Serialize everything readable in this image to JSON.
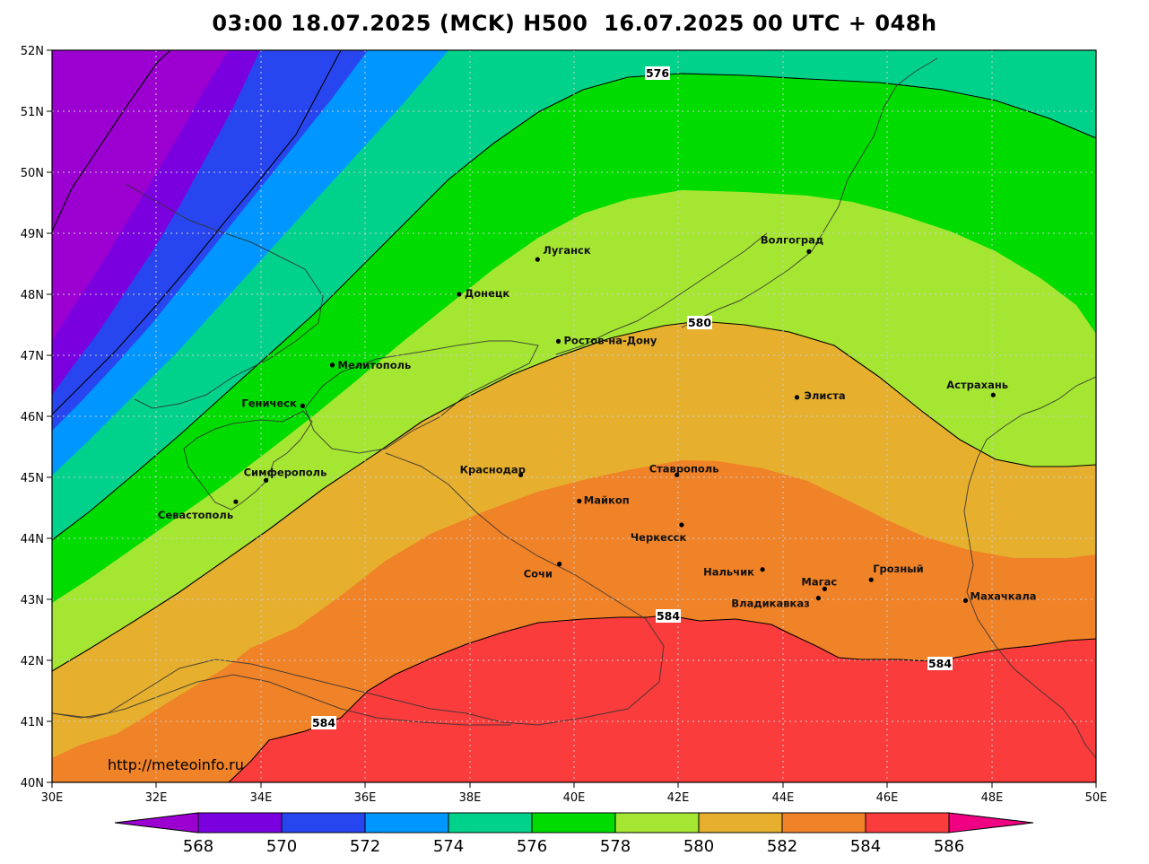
{
  "header": {
    "title": "03:00 18.07.2025 (MCK) H500  16.07.2025 00 UTC + 048h"
  },
  "map": {
    "lat_labels": [
      "52N",
      "51N",
      "50N",
      "49N",
      "48N",
      "47N",
      "46N",
      "45N",
      "44N",
      "43N",
      "42N",
      "41N",
      "40N"
    ],
    "lon_labels": [
      "30E",
      "32E",
      "34E",
      "36E",
      "38E",
      "40E",
      "42E",
      "44E",
      "46E",
      "48E",
      "50E"
    ],
    "url": "http://meteoinfo.ru",
    "contour_labels": [
      {
        "id": "c576",
        "text": "576"
      },
      {
        "id": "c580",
        "text": "580"
      },
      {
        "id": "c584a",
        "text": "584"
      },
      {
        "id": "c584b",
        "text": "584"
      },
      {
        "id": "c584c",
        "text": "584"
      }
    ],
    "cities": [
      {
        "name": "Луганск",
        "lon": 39.3,
        "lat": 48.57
      },
      {
        "name": "Волгоград",
        "lon": 44.5,
        "lat": 48.7
      },
      {
        "name": "Донецк",
        "lon": 37.8,
        "lat": 48.0
      },
      {
        "name": "Ростов-на-Дону",
        "lon": 39.7,
        "lat": 47.23
      },
      {
        "name": "Мелитополь",
        "lon": 35.37,
        "lat": 46.84
      },
      {
        "name": "Геническ",
        "lon": 34.8,
        "lat": 46.17
      },
      {
        "name": "Элиста",
        "lon": 44.27,
        "lat": 46.31
      },
      {
        "name": "Астрахань",
        "lon": 48.03,
        "lat": 46.35
      },
      {
        "name": "Симферополь",
        "lon": 34.1,
        "lat": 44.95
      },
      {
        "name": "Севастополь",
        "lon": 33.52,
        "lat": 44.6
      },
      {
        "name": "Краснодар",
        "lon": 38.98,
        "lat": 45.04
      },
      {
        "name": "Ставрополь",
        "lon": 41.97,
        "lat": 45.04
      },
      {
        "name": "Майкоп",
        "lon": 40.1,
        "lat": 44.61
      },
      {
        "name": "Черкесск",
        "lon": 42.06,
        "lat": 44.22
      },
      {
        "name": "Сочи",
        "lon": 39.72,
        "lat": 43.58
      },
      {
        "name": "Нальчик",
        "lon": 43.61,
        "lat": 43.49
      },
      {
        "name": "Магас",
        "lon": 44.8,
        "lat": 43.17
      },
      {
        "name": "Грозный",
        "lon": 45.69,
        "lat": 43.32
      },
      {
        "name": "Владикавказ",
        "lon": 44.68,
        "lat": 43.02
      },
      {
        "name": "Махачкала",
        "lon": 47.5,
        "lat": 42.98
      }
    ]
  },
  "colorbar": {
    "labels": [
      "568",
      "570",
      "572",
      "574",
      "576",
      "578",
      "580",
      "582",
      "584",
      "586"
    ],
    "colors": [
      "#9b00d1",
      "#7b00e0",
      "#2846f0",
      "#0096ff",
      "#00d28c",
      "#00dc00",
      "#a5e632",
      "#e6af2d",
      "#f08228",
      "#fa3c3c",
      "#f00082"
    ]
  },
  "colors": {
    "band_568": "#9b00d1",
    "band_570": "#7b00e0",
    "band_572": "#2846f0",
    "band_574": "#0096ff",
    "band_576": "#00d28c",
    "band_578": "#00dc00",
    "band_580": "#a5e632",
    "band_582": "#e6af2d",
    "band_584": "#f08228",
    "band_586": "#fa3c3c",
    "band_588": "#f00082"
  }
}
